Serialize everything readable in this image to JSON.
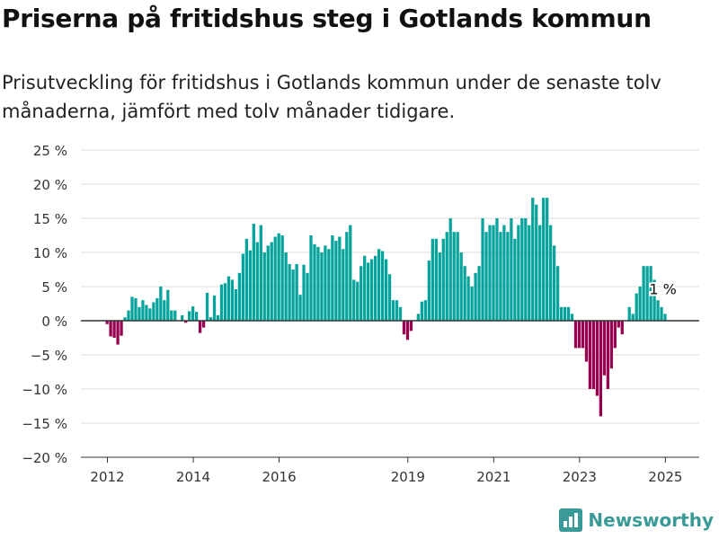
{
  "title": "Priserna på fritidshus steg i Gotlands kommun",
  "subtitle": "Prisutveckling för fritidshus i Gotlands kommun under de senaste tolv månaderna, jämfört med tolv månader tidigare.",
  "brand": {
    "name": "Newsworthy",
    "icon": "newsworthy-logo-icon"
  },
  "colors": {
    "positive": "#05a39b",
    "negative": "#97004f",
    "grid": "#dddddd",
    "zero_line": "#333333",
    "axis_text": "#333333"
  },
  "chart_data": {
    "type": "bar",
    "title": "",
    "xlabel": "",
    "ylabel": "",
    "ylim": [
      -20,
      25
    ],
    "y_ticks": [
      25,
      20,
      15,
      10,
      5,
      0,
      -5,
      -10,
      -15,
      -20
    ],
    "y_tick_labels": [
      "25 %",
      "20 %",
      "15 %",
      "10 %",
      "5 %",
      "0 %",
      "−5 %",
      "−10 %",
      "−15 %",
      "−20 %"
    ],
    "x_ticks": [
      "2012",
      "2014",
      "2016",
      "2019",
      "2021",
      "2023",
      "2025"
    ],
    "start": "2012-01",
    "frequency": "monthly",
    "values": [
      -0.5,
      -2.3,
      -2.5,
      -3.5,
      -2.2,
      0.5,
      1.5,
      3.5,
      3.3,
      2.0,
      3.0,
      2.3,
      1.8,
      2.7,
      3.3,
      5.0,
      3.0,
      4.5,
      1.5,
      1.5,
      0.0,
      0.8,
      -0.3,
      1.4,
      2.1,
      1.3,
      -1.8,
      -1.0,
      4.1,
      0.5,
      3.7,
      0.8,
      5.3,
      5.5,
      6.5,
      6.0,
      4.6,
      7.0,
      9.8,
      12.0,
      10.3,
      14.2,
      11.5,
      14.0,
      10.0,
      11.0,
      11.5,
      12.3,
      12.8,
      12.5,
      10.0,
      8.3,
      7.5,
      8.3,
      3.8,
      8.2,
      7.0,
      12.5,
      11.2,
      10.8,
      10.0,
      11.0,
      10.5,
      12.5,
      11.7,
      12.3,
      10.5,
      13.0,
      14.0,
      6.0,
      5.7,
      8.0,
      9.5,
      8.5,
      9.0,
      9.5,
      10.5,
      10.2,
      9.0,
      6.8,
      3.0,
      3.0,
      2.0,
      -2.0,
      -2.8,
      -1.5,
      0.0,
      1.0,
      2.8,
      3.0,
      8.8,
      12.0,
      12.0,
      10.0,
      12.0,
      13.0,
      15.0,
      13.0,
      13.0,
      10.0,
      8.0,
      6.5,
      5.0,
      7.0,
      8.0,
      15.0,
      13.0,
      14.0,
      14.0,
      15.0,
      13.0,
      14.0,
      13.0,
      15.0,
      12.0,
      14.0,
      15.0,
      15.0,
      14.0,
      18.0,
      17.0,
      14.0,
      18.0,
      18.0,
      14.0,
      11.0,
      8.0,
      2.0,
      2.0,
      2.0,
      1.0,
      -4.0,
      -4.0,
      -4.0,
      -6.0,
      -10.0,
      -10.0,
      -11.0,
      -14.0,
      -8.0,
      -10.0,
      -7.0,
      -4.0,
      -1.0,
      -2.0,
      0.0,
      2.0,
      1.0,
      4.0,
      5.0,
      8.0,
      8.0,
      8.0,
      6.0,
      3.0,
      2.0,
      1.0
    ],
    "annotation": {
      "text": "1 %"
    }
  }
}
